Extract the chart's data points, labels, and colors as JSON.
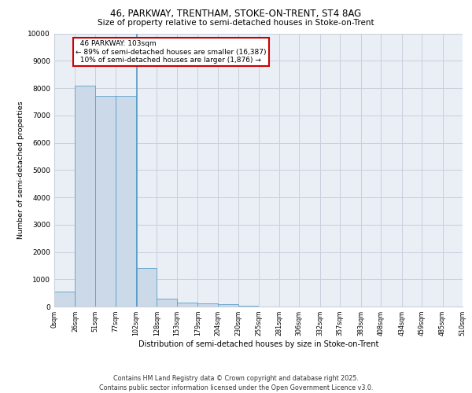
{
  "title": "46, PARKWAY, TRENTHAM, STOKE-ON-TRENT, ST4 8AG",
  "subtitle": "Size of property relative to semi-detached houses in Stoke-on-Trent",
  "xlabel": "Distribution of semi-detached houses by size in Stoke-on-Trent",
  "ylabel": "Number of semi-detached properties",
  "footer_line1": "Contains HM Land Registry data © Crown copyright and database right 2025.",
  "footer_line2": "Contains public sector information licensed under the Open Government Licence v3.0.",
  "bin_edges": [
    0,
    26,
    51,
    77,
    102,
    128,
    153,
    179,
    204,
    230,
    255,
    281,
    306,
    332,
    357,
    383,
    408,
    434,
    459,
    485,
    510
  ],
  "bin_labels": [
    "0sqm",
    "26sqm",
    "51sqm",
    "77sqm",
    "102sqm",
    "128sqm",
    "153sqm",
    "179sqm",
    "204sqm",
    "230sqm",
    "255sqm",
    "281sqm",
    "306sqm",
    "332sqm",
    "357sqm",
    "383sqm",
    "408sqm",
    "434sqm",
    "459sqm",
    "485sqm",
    "510sqm"
  ],
  "bar_heights": [
    550,
    8100,
    7700,
    7700,
    1400,
    300,
    150,
    120,
    80,
    20,
    8,
    3,
    1,
    0,
    0,
    0,
    0,
    0,
    0,
    0
  ],
  "bar_color": "#ccd9e8",
  "bar_edge_color": "#5a9fc8",
  "property_size": 103,
  "property_label": "46 PARKWAY: 103sqm",
  "pct_smaller": 89,
  "count_smaller": "16,387",
  "pct_larger": 10,
  "count_larger": "1,876",
  "vline_color": "#5a9fc8",
  "annotation_box_color": "#cc0000",
  "ylim": [
    0,
    10000
  ],
  "yticks": [
    0,
    1000,
    2000,
    3000,
    4000,
    5000,
    6000,
    7000,
    8000,
    9000,
    10000
  ],
  "grid_color": "#c8d0dc",
  "background_color": "#eaeff6"
}
